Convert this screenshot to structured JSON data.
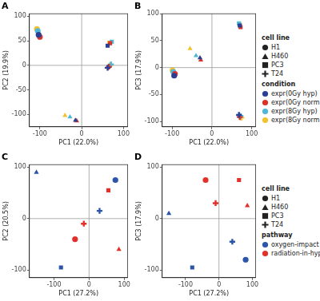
{
  "chart_data": [
    {
      "type": "scatter",
      "title": "A",
      "x_label": "PC1 (22.0%)",
      "y_label": "PC2 (19.9%)",
      "xlim": [
        -125,
        110
      ],
      "xticks": [
        -100,
        0,
        100
      ],
      "ylim": [
        -125,
        105
      ],
      "yticks": [
        -100,
        -50,
        0,
        50,
        100
      ],
      "grid": false,
      "cell_lines": [
        {
          "name": "H1",
          "marker": "circle"
        },
        {
          "name": "H460",
          "marker": "triangle"
        },
        {
          "name": "PC3",
          "marker": "square"
        },
        {
          "name": "T24",
          "marker": "plus"
        }
      ],
      "series": [
        {
          "name": "expr(0Gy hyp)",
          "color": "#283f94",
          "x": [
            -103,
            -15,
            62,
            62
          ],
          "y": [
            62,
            -112,
            40,
            -5
          ]
        },
        {
          "name": "expr(0Gy norm)",
          "color": "#d8342b",
          "x": [
            -100,
            -12,
            68,
            65
          ],
          "y": [
            58,
            -113,
            45,
            -3
          ]
        },
        {
          "name": "expr(8Gy hyp)",
          "color": "#4fb6d8",
          "x": [
            -105,
            -28,
            72,
            70
          ],
          "y": [
            70,
            -105,
            48,
            2
          ]
        },
        {
          "name": "expr(8Gy norm)",
          "color": "#f2c12e",
          "x": [
            -107,
            -40,
            66,
            68
          ],
          "y": [
            74,
            -102,
            46,
            0
          ]
        }
      ]
    },
    {
      "type": "scatter",
      "title": "B",
      "x_label": "PC1 (22.0%)",
      "y_label": "PC3 (17.9%)",
      "xlim": [
        -125,
        110
      ],
      "xticks": [
        -100,
        0,
        100
      ],
      "ylim": [
        -110,
        100
      ],
      "yticks": [
        -100,
        -50,
        0,
        50,
        100
      ],
      "grid": false,
      "legend": "right",
      "legend_titles": [
        "cell line",
        "condition"
      ],
      "cell_lines": [
        {
          "name": "H1",
          "marker": "circle"
        },
        {
          "name": "H460",
          "marker": "triangle"
        },
        {
          "name": "PC3",
          "marker": "square"
        },
        {
          "name": "T24",
          "marker": "plus"
        }
      ],
      "series": [
        {
          "name": "expr(0Gy hyp)",
          "color": "#283f94",
          "x": [
            -95,
            -30,
            70,
            68
          ],
          "y": [
            -15,
            18,
            78,
            -88
          ]
        },
        {
          "name": "expr(0Gy norm)",
          "color": "#d8342b",
          "x": [
            -93,
            -28,
            72,
            70
          ],
          "y": [
            -12,
            14,
            75,
            -92
          ]
        },
        {
          "name": "expr(8Gy hyp)",
          "color": "#4fb6d8",
          "x": [
            -97,
            -40,
            68,
            72
          ],
          "y": [
            -8,
            22,
            82,
            -90
          ]
        },
        {
          "name": "expr(8Gy norm)",
          "color": "#f2c12e",
          "x": [
            -99,
            -55,
            70,
            74
          ],
          "y": [
            -5,
            35,
            80,
            -93
          ]
        }
      ]
    },
    {
      "type": "scatter",
      "title": "C",
      "x_label": "PC1 (27.2%)",
      "y_label": "PC2 (20.5%)",
      "xlim": [
        -170,
        110
      ],
      "xticks": [
        -100,
        0,
        100
      ],
      "ylim": [
        -115,
        105
      ],
      "yticks": [
        -100,
        0,
        100
      ],
      "grid": false,
      "cell_lines": [
        {
          "name": "H1",
          "marker": "circle"
        },
        {
          "name": "H460",
          "marker": "triangle"
        },
        {
          "name": "PC3",
          "marker": "square"
        },
        {
          "name": "T24",
          "marker": "plus"
        }
      ],
      "series": [
        {
          "name": "oxygen-impact",
          "color": "#2b55a8",
          "x": [
            75,
            -150,
            -80,
            30
          ],
          "y": [
            75,
            90,
            -95,
            15
          ]
        },
        {
          "name": "radiation-in-hypoxia",
          "color": "#e2312b",
          "x": [
            -40,
            85,
            55,
            -15
          ],
          "y": [
            -40,
            -60,
            55,
            -10
          ]
        }
      ]
    },
    {
      "type": "scatter",
      "title": "D",
      "x_label": "PC1 (27.2%)",
      "y_label": "PC3 (17.9%)",
      "xlim": [
        -170,
        110
      ],
      "xticks": [
        -100,
        0,
        100
      ],
      "ylim": [
        -115,
        105
      ],
      "yticks": [
        -100,
        0,
        100
      ],
      "grid": false,
      "legend": "right",
      "legend_titles": [
        "cell line",
        "pathway"
      ],
      "cell_lines": [
        {
          "name": "H1",
          "marker": "circle"
        },
        {
          "name": "H460",
          "marker": "triangle"
        },
        {
          "name": "PC3",
          "marker": "square"
        },
        {
          "name": "T24",
          "marker": "plus"
        }
      ],
      "series": [
        {
          "name": "oxygen-impact",
          "color": "#2b55a8",
          "x": [
            80,
            -150,
            -80,
            40
          ],
          "y": [
            -80,
            10,
            -95,
            -45
          ]
        },
        {
          "name": "radiation-in-hypoxia",
          "color": "#e2312b",
          "x": [
            -40,
            85,
            60,
            -10
          ],
          "y": [
            75,
            25,
            75,
            30
          ]
        }
      ]
    }
  ]
}
